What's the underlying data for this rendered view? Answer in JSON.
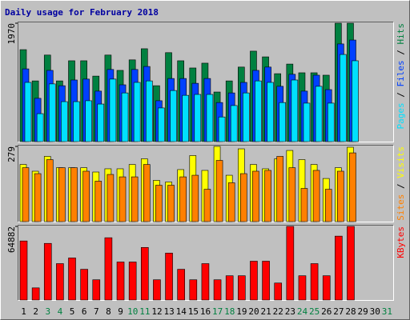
{
  "chart_data": [
    {
      "type": "bar",
      "title": "Daily usage for February 2018",
      "legend_separator": " / ",
      "ylim": [
        0,
        1970
      ],
      "yticks": [
        1970
      ],
      "series": [
        {
          "name": "Hits",
          "color": "#008040",
          "values": [
            1530,
            1010,
            1440,
            1010,
            1345,
            1345,
            1090,
            1440,
            1185,
            1360,
            1545,
            930,
            1480,
            1345,
            1225,
            1305,
            825,
            1010,
            1240,
            1505,
            1410,
            1130,
            1290,
            1145,
            1145,
            1105,
            1970,
            1970,
            null,
            null,
            null
          ]
        },
        {
          "name": "Files",
          "color": "#0040ff",
          "values": [
            1210,
            720,
            1185,
            930,
            1025,
            1040,
            840,
            1200,
            945,
            1200,
            1250,
            680,
            1050,
            1050,
            970,
            1050,
            650,
            810,
            985,
            1185,
            1240,
            920,
            1120,
            840,
            1105,
            865,
            1625,
            1690,
            null,
            null,
            null
          ]
        },
        {
          "name": "Pages",
          "color": "#00e0ff",
          "values": [
            985,
            465,
            960,
            665,
            665,
            680,
            625,
            1040,
            810,
            985,
            1010,
            560,
            850,
            770,
            785,
            785,
            410,
            600,
            810,
            1010,
            985,
            650,
            1025,
            640,
            920,
            640,
            1450,
            1345,
            null,
            null,
            null
          ]
        }
      ]
    },
    {
      "type": "bar",
      "legend_separator": " / ",
      "ylim": [
        0,
        279
      ],
      "yticks": [
        279
      ],
      "series": [
        {
          "name": "Visits",
          "color": "#ffff00",
          "values": [
            212,
            187,
            242,
            200,
            200,
            200,
            184,
            196,
            196,
            212,
            233,
            153,
            147,
            193,
            245,
            190,
            279,
            172,
            270,
            212,
            196,
            233,
            264,
            230,
            212,
            160,
            200,
            276,
            null,
            null,
            null
          ]
        },
        {
          "name": "Sites",
          "color": "#ff8000",
          "values": [
            200,
            178,
            230,
            200,
            200,
            187,
            150,
            175,
            166,
            166,
            212,
            135,
            135,
            166,
            172,
            120,
            227,
            144,
            178,
            187,
            190,
            242,
            200,
            123,
            190,
            120,
            187,
            255,
            null,
            null,
            null
          ]
        }
      ]
    },
    {
      "type": "bar",
      "ylim": [
        0,
        64882
      ],
      "yticks": [
        64882
      ],
      "categories": [
        "1",
        "2",
        "3",
        "4",
        "5",
        "6",
        "7",
        "8",
        "9",
        "10",
        "11",
        "12",
        "13",
        "14",
        "15",
        "16",
        "17",
        "18",
        "19",
        "20",
        "21",
        "22",
        "23",
        "24",
        "25",
        "26",
        "27",
        "28",
        "29",
        "30",
        "31"
      ],
      "category_colors": [
        "#000000",
        "#000000",
        "#008040",
        "#008040",
        "#000000",
        "#000000",
        "#000000",
        "#000000",
        "#000000",
        "#008040",
        "#008040",
        "#000000",
        "#000000",
        "#000000",
        "#000000",
        "#000000",
        "#008040",
        "#008040",
        "#000000",
        "#000000",
        "#000000",
        "#000000",
        "#000000",
        "#008040",
        "#008040",
        "#000000",
        "#000000",
        "#000000",
        "#000000",
        "#000000",
        "#008040"
      ],
      "series": [
        {
          "name": "KBytes",
          "color": "#ff0000",
          "values": [
            52050,
            10700,
            49910,
            32080,
            37070,
            27090,
            17830,
            54900,
            33510,
            33510,
            46340,
            17830,
            41350,
            27090,
            17830,
            32080,
            17830,
            21390,
            21390,
            34220,
            34220,
            14970,
            64882,
            21390,
            32080,
            21390,
            56320,
            64882,
            null,
            null,
            null
          ]
        }
      ]
    }
  ]
}
